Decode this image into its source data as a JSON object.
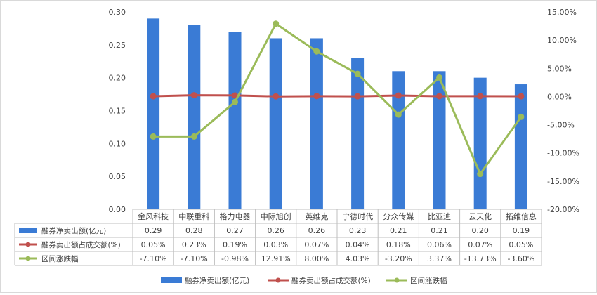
{
  "chart_data": {
    "type": "bar",
    "categories": [
      "金风科技",
      "中联重科",
      "格力电器",
      "中际旭创",
      "英维克",
      "宁德时代",
      "分众传媒",
      "比亚迪",
      "云天化",
      "拓维信息"
    ],
    "series": [
      {
        "name": "融券净卖出额(亿元)",
        "type": "bar",
        "axis": "left",
        "values": [
          0.29,
          0.28,
          0.27,
          0.26,
          0.26,
          0.23,
          0.21,
          0.21,
          0.2,
          0.19
        ],
        "labels": [
          "0.29",
          "0.28",
          "0.27",
          "0.26",
          "0.26",
          "0.23",
          "0.21",
          "0.21",
          "0.20",
          "0.19"
        ],
        "color": "#3a7bd5"
      },
      {
        "name": "融券卖出额占成交额(%)",
        "type": "line",
        "axis": "right",
        "values": [
          0.05,
          0.23,
          0.19,
          0.03,
          0.07,
          0.04,
          0.18,
          0.06,
          0.07,
          0.05
        ],
        "labels": [
          "0.05%",
          "0.23%",
          "0.19%",
          "0.03%",
          "0.07%",
          "0.04%",
          "0.18%",
          "0.06%",
          "0.07%",
          "0.05%"
        ],
        "color": "#c0504d"
      },
      {
        "name": "区间涨跌幅",
        "type": "line",
        "axis": "right",
        "values": [
          -7.1,
          -7.1,
          -0.98,
          12.91,
          8.0,
          4.03,
          -3.2,
          3.37,
          -13.73,
          -3.6
        ],
        "labels": [
          "-7.10%",
          "-7.10%",
          "-0.98%",
          "12.91%",
          "8.00%",
          "4.03%",
          "-3.20%",
          "3.37%",
          "-13.73%",
          "-3.60%"
        ],
        "color": "#9bbb59"
      }
    ],
    "y_left": {
      "ylim": [
        0,
        0.3
      ],
      "ticks": [
        "0.00",
        "0.05",
        "0.10",
        "0.15",
        "0.20",
        "0.25",
        "0.30"
      ]
    },
    "y_right": {
      "ylim": [
        -20,
        15
      ],
      "ticks": [
        "15.00%",
        "10.00%",
        "5.00%",
        "0.00%",
        "-5.00%",
        "-10.00%",
        "-15.00%",
        "-20.00%"
      ]
    },
    "legend_placement": "bottom",
    "data_table": true,
    "grid": false
  }
}
